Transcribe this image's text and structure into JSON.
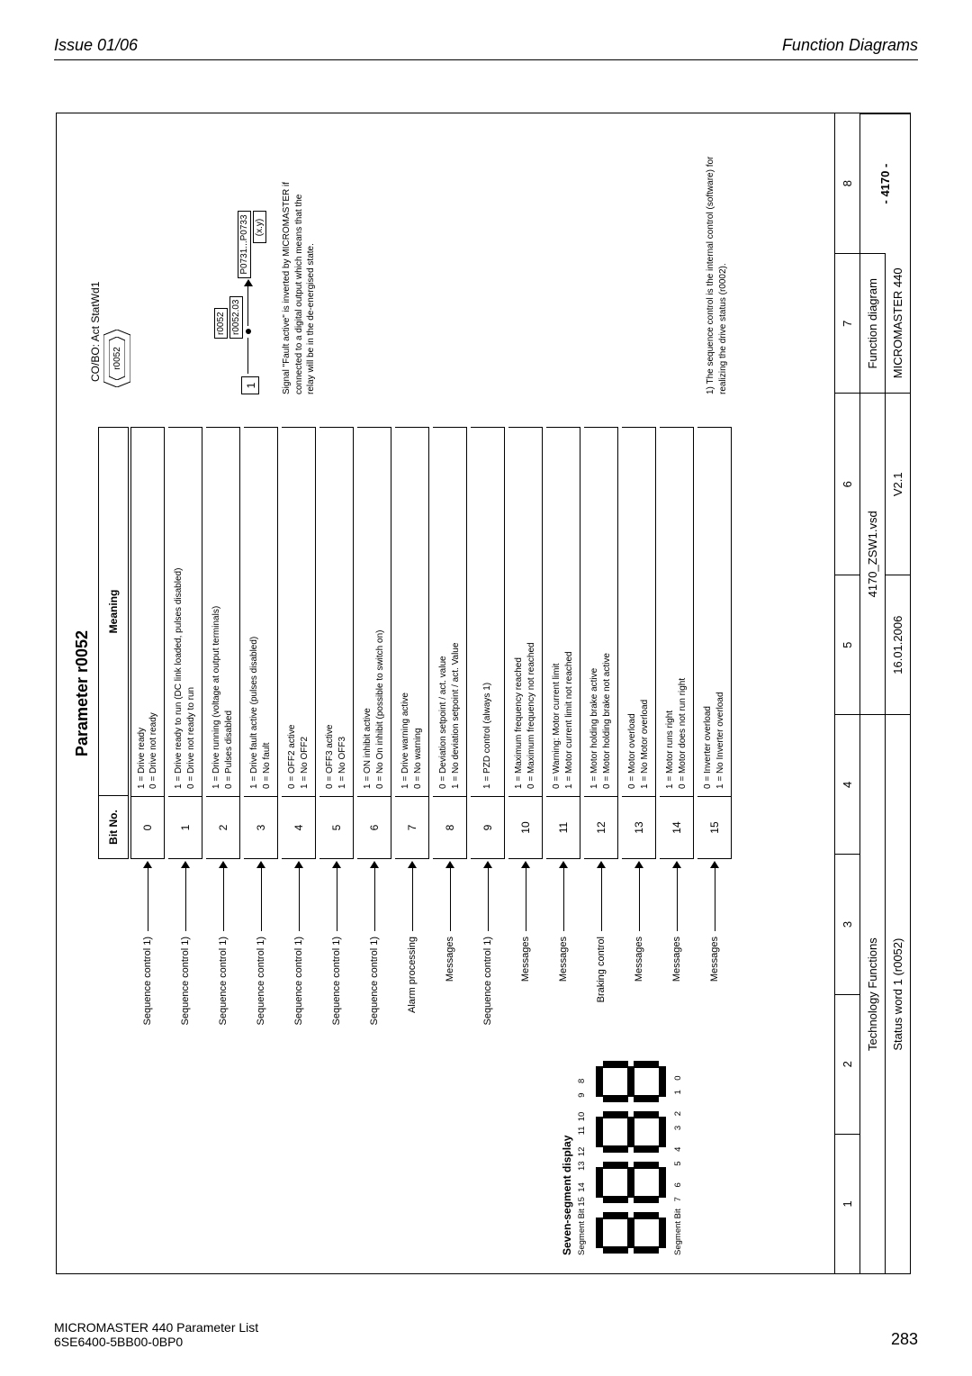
{
  "page_header": {
    "left": "Issue 01/06",
    "right": "Function Diagrams"
  },
  "page_footer": {
    "l1": "MICROMASTER 440    Parameter List",
    "l2": "6SE6400-5BB00-0BP0",
    "pageno": "283"
  },
  "title": "Parameter r0052",
  "head": {
    "bitno": "Bit No.",
    "meaning": "Meaning"
  },
  "cobo": {
    "label": "CO/BO: Act StatWd1",
    "outer": "r0052",
    "inner": "r0052"
  },
  "signal": {
    "one": "1",
    "mid": "r0052",
    "mid2": "r0052.03",
    "right": "P0731...P0733",
    "right2": "(x.y)",
    "note": "Signal \"Fault active\" is inverted by MICROMASTER if connected to a digital output which means that the relay will be in the de-energised state."
  },
  "footnote1": "1)  The sequence control is the internal control (software) for realizing the drive status (r0002).",
  "bits": [
    {
      "src": "Sequence control 1)",
      "n": "0",
      "m1": "1 = Drive ready",
      "m2": "0 = Drive not ready"
    },
    {
      "src": "Sequence control 1)",
      "n": "1",
      "m1": "1 = Drive ready to run (DC link loaded, pulses disabled)",
      "m2": "0 = Drive not ready to run"
    },
    {
      "src": "Sequence control 1)",
      "n": "2",
      "m1": "1 = Drive running (voltage at output terminals)",
      "m2": "0 = Pulses disabled"
    },
    {
      "src": "Sequence control 1)",
      "n": "3",
      "m1": "1 = Drive fault active (pulses disabled)",
      "m2": "0 = No fault"
    },
    {
      "src": "Sequence control 1)",
      "n": "4",
      "m1": "0 = OFF2 active",
      "m2": "1 = No OFF2"
    },
    {
      "src": "Sequence control 1)",
      "n": "5",
      "m1": "0 = OFF3 active",
      "m2": "1 = No OFF3"
    },
    {
      "src": "Sequence control 1)",
      "n": "6",
      "m1": "1 = ON inhibit active",
      "m2": "0 = No On inhibit (possible to switch on)"
    },
    {
      "src": "Alarm processing",
      "n": "7",
      "m1": "1 = Drive warning active",
      "m2": "0 = No warning"
    },
    {
      "src": "Messages",
      "n": "8",
      "m1": "0 = Deviation setpoint / act. value",
      "m2": "1 = No deviation setpoint / act. Value"
    },
    {
      "src": "Sequence control 1)",
      "n": "9",
      "m1": "1 = PZD control (always 1)",
      "m2": ""
    },
    {
      "src": "Messages",
      "n": "10",
      "m1": "1 = Maximum frequency reached",
      "m2": "0 = Maximum frequency not reached"
    },
    {
      "src": "Messages",
      "n": "11",
      "m1": "0 = Warning: Motor current limit",
      "m2": "1 = Motor current limit not reached"
    },
    {
      "src": "Braking control",
      "n": "12",
      "m1": "1 = Motor holding brake active",
      "m2": "0 = Motor holding brake not active"
    },
    {
      "src": "Messages",
      "n": "13",
      "m1": "0 = Motor overload",
      "m2": "1 = No Motor overload"
    },
    {
      "src": "Messages",
      "n": "14",
      "m1": "1 = Motor runs right",
      "m2": "0 = Motor does not run right"
    },
    {
      "src": "Messages",
      "n": "15",
      "m1": "0 = Inverter overload",
      "m2": "1 = No Inverter overload"
    }
  ],
  "ssd": {
    "title": "Seven-segment display",
    "top": "Segment Bit 15  14     13  12     11  10      9    8",
    "bot": "Segment Bit   7    6       5    4       3    2       1    0"
  },
  "titleblock": {
    "nums": [
      "1",
      "2",
      "3",
      "4",
      "5",
      "6",
      "7",
      "8"
    ],
    "row2l": "Technology Functions",
    "row2c": "4170_ZSW1.vsd",
    "row2r": "Function diagram",
    "row3l": "Status word 1 (r0052)",
    "row3c1": "16.01.2006",
    "row3c2": "V2.1",
    "row3r": "MICROMASTER 440",
    "pageno": "- 4170 -"
  }
}
